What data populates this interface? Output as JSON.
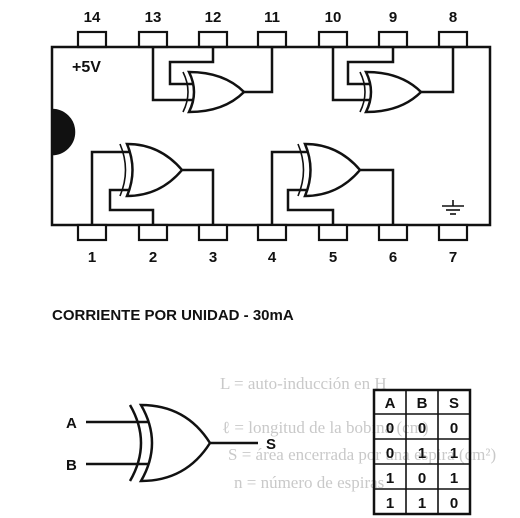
{
  "chip": {
    "top_pins": [
      "14",
      "13",
      "12",
      "11",
      "10",
      "9",
      "8"
    ],
    "bottom_pins": [
      "1",
      "2",
      "3",
      "4",
      "5",
      "6",
      "7"
    ],
    "supply_label": "+5V"
  },
  "caption": "CORRIENTE POR UNIDAD - 30mA",
  "symbol": {
    "input_a": "A",
    "input_b": "B",
    "output": "S"
  },
  "truth_table": {
    "headers": [
      "A",
      "B",
      "S"
    ],
    "rows": [
      [
        "0",
        "0",
        "0"
      ],
      [
        "0",
        "1",
        "1"
      ],
      [
        "1",
        "0",
        "1"
      ],
      [
        "1",
        "1",
        "0"
      ]
    ]
  },
  "bleed_through": {
    "lines": [
      "L = auto-inducción en H",
      "ℓ = longitud de la bobina (cm)",
      "S = área encerrada por una espira (cm²)",
      "n = número de espiras"
    ]
  },
  "colors": {
    "ink": "#111111",
    "bleed_through": "#c9c9c9",
    "background": "#ffffff"
  }
}
